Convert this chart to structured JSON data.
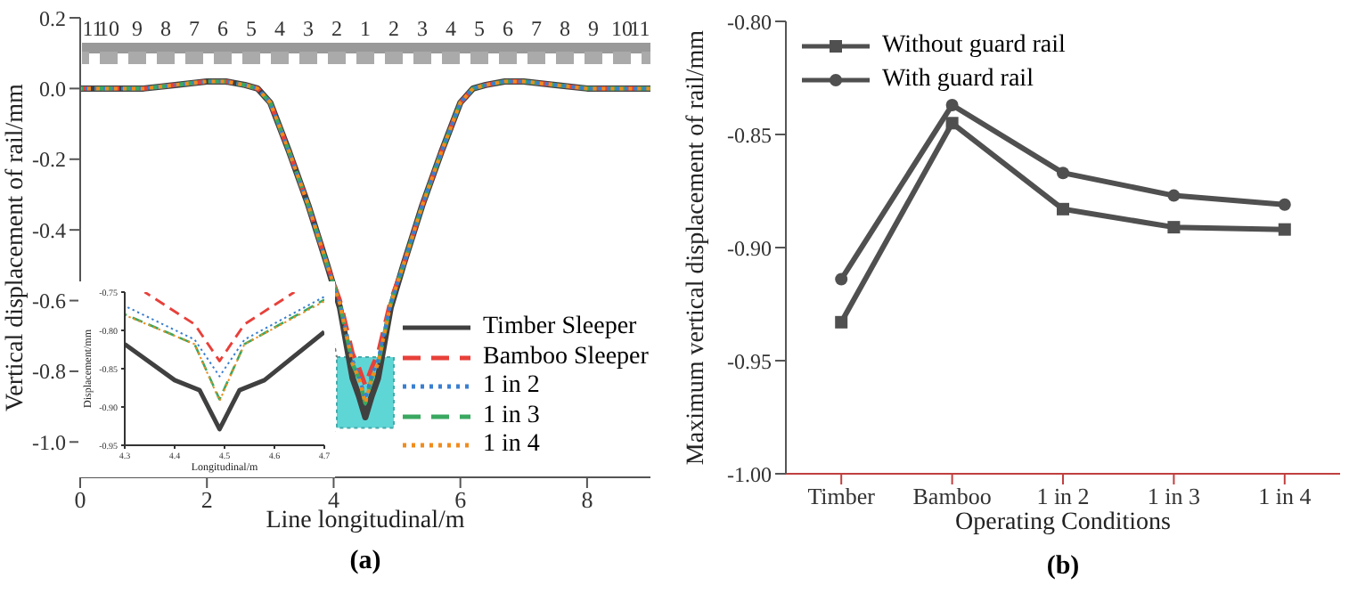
{
  "chart_data": [
    {
      "type": "line",
      "xlabel": "Line longitudinal/m",
      "ylabel": "Vertical displacement of rail/mm",
      "annotations": [
        "11",
        "10",
        "9",
        "8",
        "7",
        "6",
        "5",
        "4",
        "3",
        "2",
        "1",
        "2",
        "3",
        "4",
        "5",
        "6",
        "7",
        "8",
        "9",
        "10",
        "11",
        "(a)"
      ],
      "legend": "bottom right",
      "marker": "none",
      "grid": false,
      "x": [
        0,
        0.5,
        1,
        1.5,
        2,
        2.3,
        2.6,
        2.8,
        3,
        3.3,
        3.6,
        3.9,
        4.1,
        4.3,
        4.4,
        4.5,
        4.6,
        4.7,
        4.9,
        5.1,
        5.4,
        5.7,
        6,
        6.2,
        6.4,
        6.7,
        7,
        7.5,
        8,
        8.5,
        9
      ],
      "xlim": [
        0,
        9
      ],
      "xticks": [
        0,
        2,
        4,
        6,
        8
      ],
      "ylim": [
        -1.1,
        0.2
      ],
      "yticks": [
        {
          "value": -1,
          "label": "-1.0"
        },
        -0.8,
        -0.6,
        -0.4,
        -0.2,
        {
          "value": 0,
          "label": "0.0"
        },
        0.2
      ],
      "series": [
        {
          "name": "Timber Sleeper",
          "color": "#404040",
          "line_style": "solid",
          "values": [
            0,
            0,
            0,
            0.01,
            0.02,
            0.02,
            0.01,
            0,
            -0.04,
            -0.18,
            -0.33,
            -0.5,
            -0.62,
            -0.82,
            -0.87,
            -0.93,
            -0.87,
            -0.82,
            -0.62,
            -0.5,
            -0.33,
            -0.18,
            -0.04,
            0,
            0.01,
            0.02,
            0.02,
            0.01,
            0,
            0,
            0
          ]
        },
        {
          "name": "Bamboo Sleeper",
          "color": "#e8403a",
          "line_style": "dashed",
          "values": [
            0,
            0,
            0,
            0.01,
            0.02,
            0.02,
            0.01,
            0,
            -0.04,
            -0.18,
            -0.33,
            -0.5,
            -0.6,
            -0.75,
            -0.79,
            -0.84,
            -0.79,
            -0.75,
            -0.6,
            -0.5,
            -0.33,
            -0.18,
            -0.04,
            0,
            0.01,
            0.02,
            0.02,
            0.01,
            0,
            0,
            0
          ]
        },
        {
          "name": "1 in 2",
          "color": "#3a7fd0",
          "line_style": "dotted",
          "values": [
            0,
            0,
            0,
            0.01,
            0.02,
            0.02,
            0.01,
            0,
            -0.04,
            -0.18,
            -0.33,
            -0.5,
            -0.61,
            -0.77,
            -0.81,
            -0.88,
            -0.81,
            -0.77,
            -0.61,
            -0.5,
            -0.33,
            -0.18,
            -0.04,
            0,
            0.01,
            0.02,
            0.02,
            0.01,
            0,
            0,
            0
          ]
        },
        {
          "name": "1 in 3",
          "color": "#3aa860",
          "line_style": "dashed",
          "values": [
            0,
            0,
            0,
            0.01,
            0.02,
            0.02,
            0.01,
            0,
            -0.04,
            -0.18,
            -0.33,
            -0.5,
            -0.61,
            -0.78,
            -0.82,
            -0.89,
            -0.82,
            -0.78,
            -0.61,
            -0.5,
            -0.33,
            -0.18,
            -0.04,
            0,
            0.01,
            0.02,
            0.02,
            0.01,
            0,
            0,
            0
          ]
        },
        {
          "name": "1 in 4",
          "color": "#f08c1e",
          "line_style": "dotted",
          "values": [
            0,
            0,
            0,
            0.01,
            0.02,
            0.02,
            0.01,
            0,
            -0.04,
            -0.18,
            -0.33,
            -0.5,
            -0.61,
            -0.78,
            -0.82,
            -0.89,
            -0.82,
            -0.78,
            -0.61,
            -0.5,
            -0.33,
            -0.18,
            -0.04,
            0,
            0.01,
            0.02,
            0.02,
            0.01,
            0,
            0,
            0
          ]
        }
      ]
    },
    {
      "type": "line",
      "xlabel": "Longitudinal/m",
      "ylabel": "Displacement/mm",
      "marker": "none",
      "grid": false,
      "xlim": [
        4.3,
        4.7
      ],
      "xticks": [
        4.3,
        4.4,
        4.5,
        4.6,
        4.7
      ],
      "ylim": [
        -0.95,
        -0.75
      ],
      "yticks": [
        -0.95,
        {
          "value": -0.9,
          "label": "-0.90"
        },
        -0.85,
        {
          "value": -0.8,
          "label": "-0.80"
        },
        -0.75
      ],
      "series": [
        {
          "color": "#404040",
          "line_style": "solid",
          "x": [
            4.3,
            4.4,
            4.45,
            4.49,
            4.53,
            4.58,
            4.7
          ],
          "values": [
            -0.818,
            -0.865,
            -0.878,
            -0.929,
            -0.878,
            -0.865,
            -0.802
          ]
        },
        {
          "color": "#e8403a",
          "line_style": "dashed",
          "x": [
            4.34,
            4.44,
            4.49,
            4.54,
            4.64
          ],
          "values": [
            -0.75,
            -0.792,
            -0.84,
            -0.792,
            -0.75
          ]
        },
        {
          "color": "#3a7fd0",
          "line_style": "dotted",
          "x": [
            4.3,
            4.44,
            4.49,
            4.54,
            4.7
          ],
          "values": [
            -0.768,
            -0.812,
            -0.86,
            -0.812,
            -0.756
          ]
        },
        {
          "color": "#3aa860",
          "line_style": "dashed",
          "x": [
            4.3,
            4.44,
            4.49,
            4.54,
            4.7
          ],
          "values": [
            -0.779,
            -0.818,
            -0.89,
            -0.818,
            -0.76
          ]
        },
        {
          "color": "#f08c1e",
          "line_style": "dotted",
          "x": [
            4.3,
            4.44,
            4.49,
            4.54,
            4.7
          ],
          "values": [
            -0.78,
            -0.818,
            -0.892,
            -0.818,
            -0.762
          ]
        }
      ]
    },
    {
      "type": "line",
      "xlabel": "Operating Conditions",
      "ylabel": "Maximum vertical displacement of rail/mm",
      "annotations": [
        "(b)"
      ],
      "legend": "top left",
      "grid": false,
      "categories": [
        "Timber",
        "Bamboo",
        "1 in 2",
        "1 in 3",
        "1 in 4"
      ],
      "ylim": [
        -1,
        -0.8
      ],
      "yticks": [
        {
          "value": -1,
          "label": "-1.00"
        },
        -0.95,
        {
          "value": -0.9,
          "label": "-0.90"
        },
        -0.85,
        {
          "value": -0.8,
          "label": "-0.80"
        }
      ],
      "series": [
        {
          "name": "Without guard rail",
          "color": "#505050",
          "marker": "square",
          "values": [
            -0.933,
            -0.845,
            -0.883,
            -0.891,
            -0.892
          ]
        },
        {
          "name": "With guard rail",
          "color": "#505050",
          "marker": "circle",
          "values": [
            -0.914,
            -0.837,
            -0.867,
            -0.877,
            -0.881
          ]
        }
      ]
    }
  ]
}
